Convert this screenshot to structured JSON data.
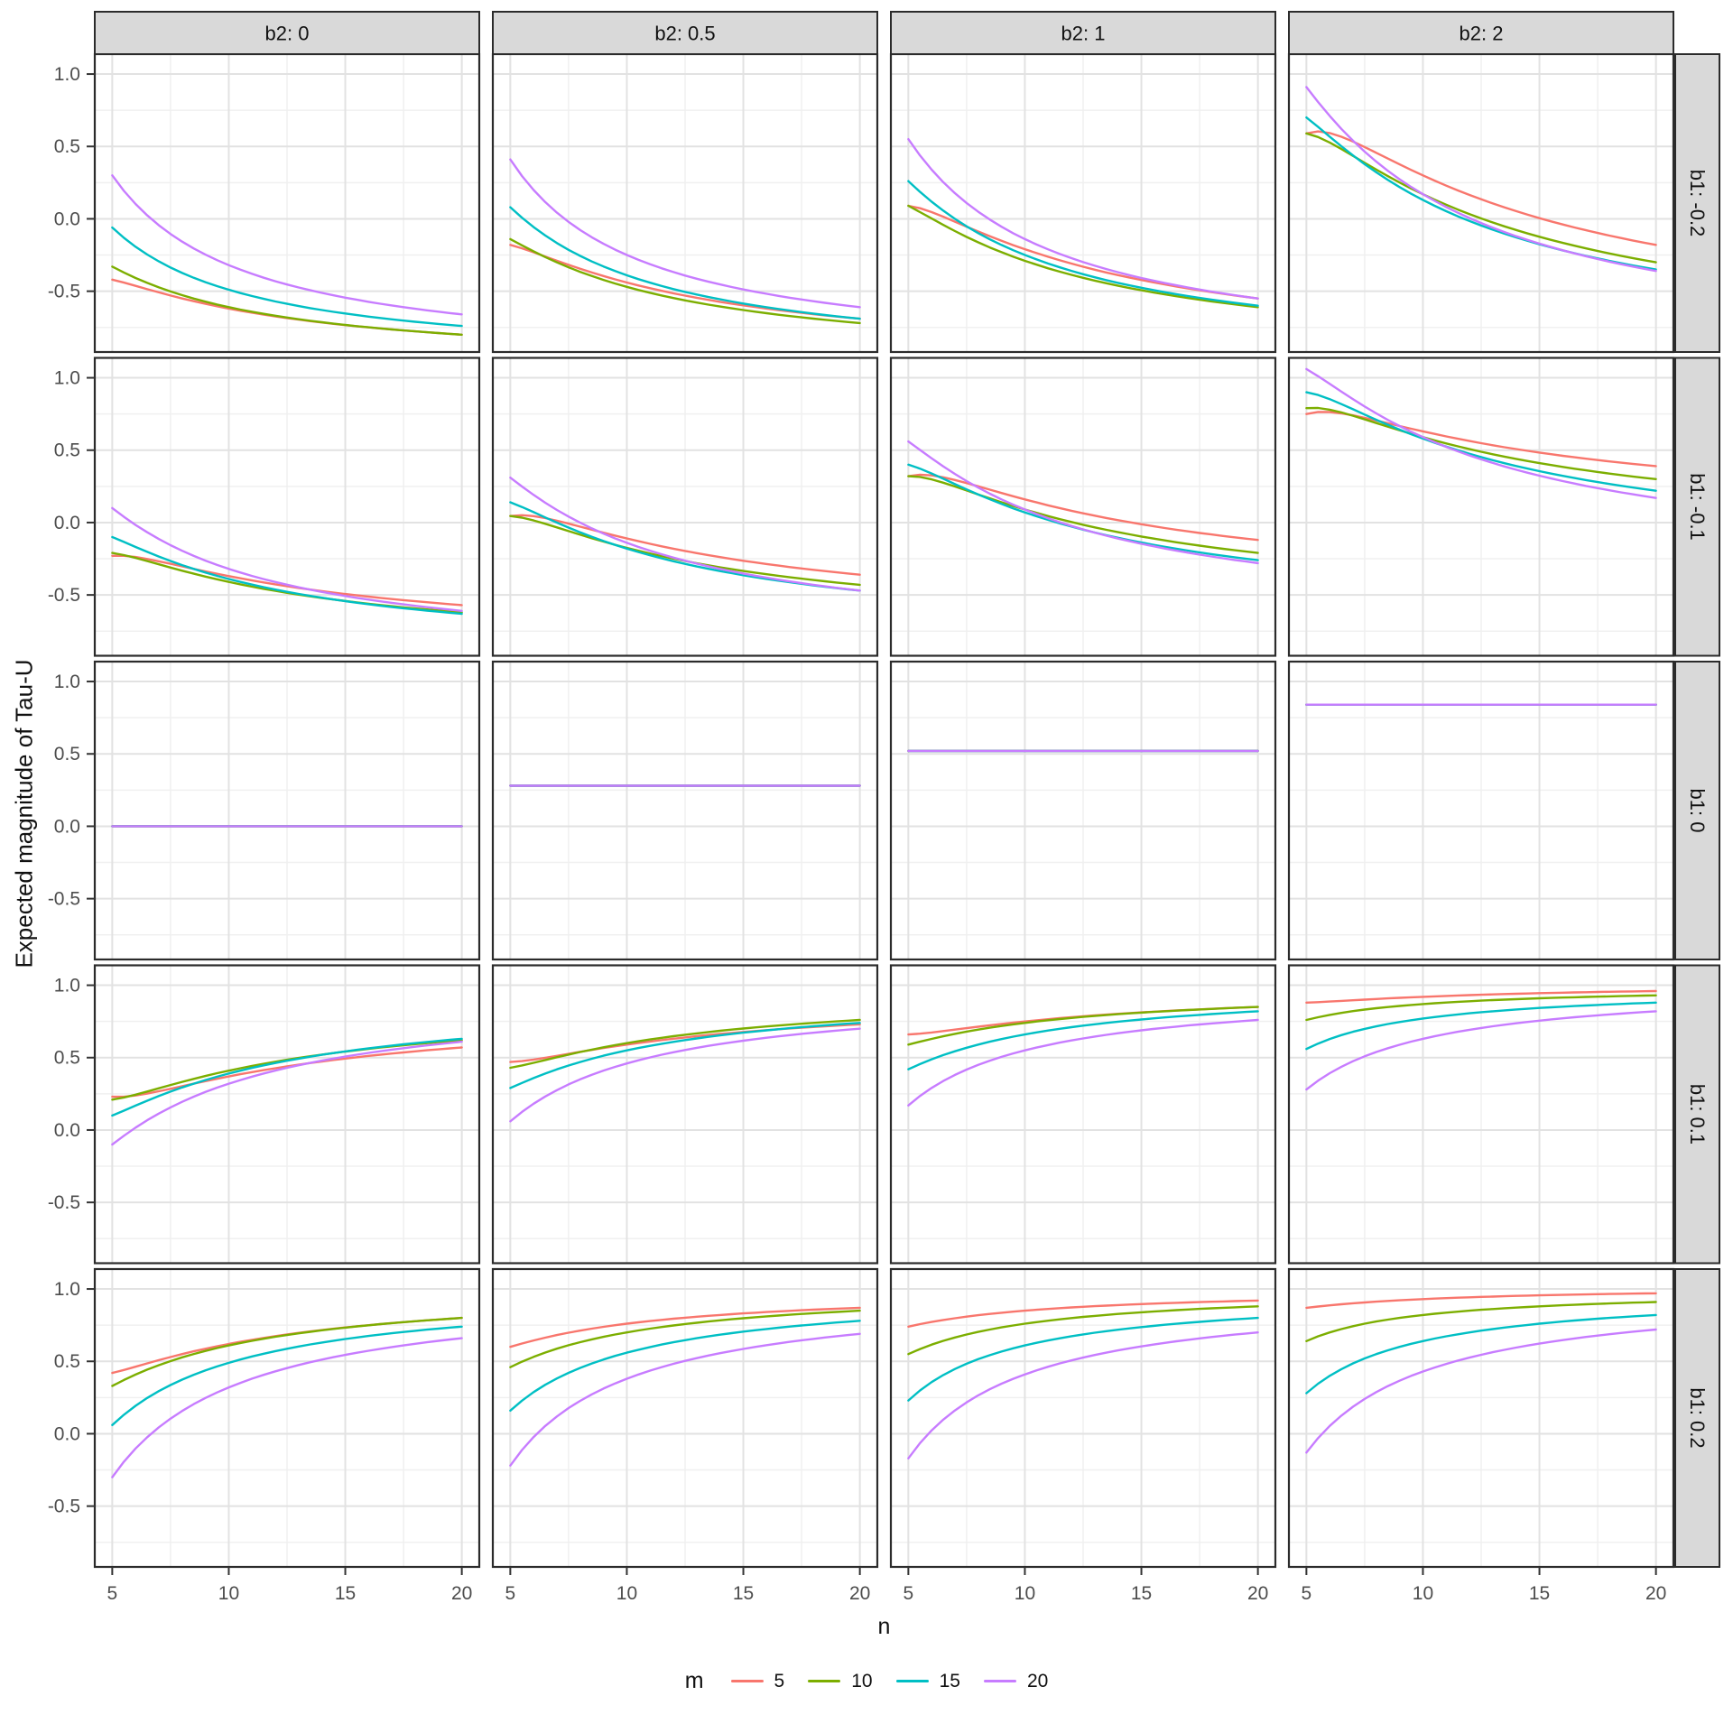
{
  "chart_data": {
    "type": "line",
    "xlabel": "n",
    "ylabel": "Expected magnitude of Tau-U",
    "x_ticks": [
      5,
      10,
      15,
      20
    ],
    "y_ticks": [
      1.0,
      0.5,
      0.0,
      -0.5
    ],
    "y_tick_labels": [
      "1.0",
      "0.5",
      "0.0",
      "-0.5"
    ],
    "x_minor_ticks": [
      7.5,
      12.5,
      17.5
    ],
    "y_minor_ticks": [
      0.75,
      0.25,
      -0.25,
      -0.75
    ],
    "x_domain": [
      4.25,
      20.75
    ],
    "y_domain": [
      -0.92,
      1.1375
    ],
    "grid": "on",
    "legend": {
      "title": "m",
      "position": "bottom",
      "entries": [
        {
          "label": "5",
          "color": "#F8766D"
        },
        {
          "label": "10",
          "color": "#7CAE00"
        },
        {
          "label": "15",
          "color": "#00BFC4"
        },
        {
          "label": "20",
          "color": "#C77CFF"
        }
      ]
    },
    "facet_col_labels": [
      "b2: 0",
      "b2: 0.5",
      "b2: 1",
      "b2: 2"
    ],
    "facet_row_labels": [
      "b1: -0.2",
      "b1: -0.1",
      "b1: 0",
      "b1: 0.1",
      "b1: 0.2"
    ],
    "series_anchor_n": [
      5,
      10,
      20
    ],
    "panels": [
      {
        "row": "b1: -0.2",
        "col": "b2: 0",
        "series": {
          "5": [
            -0.42,
            -0.62,
            -0.8
          ],
          "10": [
            -0.33,
            -0.61,
            -0.8
          ],
          "15": [
            -0.06,
            -0.49,
            -0.74
          ],
          "20": [
            0.3,
            -0.32,
            -0.66
          ]
        }
      },
      {
        "row": "b1: -0.2",
        "col": "b2: 0.5",
        "series": {
          "5": [
            -0.18,
            -0.44,
            -0.69
          ],
          "10": [
            -0.14,
            -0.47,
            -0.72
          ],
          "15": [
            0.08,
            -0.39,
            -0.69
          ],
          "20": [
            0.41,
            -0.25,
            -0.61
          ]
        }
      },
      {
        "row": "b1: -0.2",
        "col": "b2: 1",
        "series": {
          "5": [
            0.09,
            -0.21,
            -0.55
          ],
          "10": [
            0.09,
            -0.29,
            -0.61
          ],
          "15": [
            0.26,
            -0.25,
            -0.6
          ],
          "20": [
            0.55,
            -0.14,
            -0.55
          ]
        }
      },
      {
        "row": "b1: -0.2",
        "col": "b2: 2",
        "series": {
          "5": [
            0.59,
            0.3,
            -0.18
          ],
          "10": [
            0.59,
            0.17,
            -0.3
          ],
          "15": [
            0.7,
            0.13,
            -0.35
          ],
          "20": [
            0.91,
            0.17,
            -0.36
          ]
        }
      },
      {
        "row": "b1: -0.1",
        "col": "b2: 0",
        "series": {
          "5": [
            -0.23,
            -0.37,
            -0.57
          ],
          "10": [
            -0.21,
            -0.41,
            -0.62
          ],
          "15": [
            -0.1,
            -0.39,
            -0.63
          ],
          "20": [
            0.1,
            -0.32,
            -0.61
          ]
        }
      },
      {
        "row": "b1: -0.1",
        "col": "b2: 0.5",
        "series": {
          "5": [
            0.045,
            -0.11,
            -0.36
          ],
          "10": [
            0.045,
            -0.175,
            -0.43
          ],
          "15": [
            0.14,
            -0.18,
            -0.47
          ],
          "20": [
            0.31,
            -0.14,
            -0.47
          ]
        }
      },
      {
        "row": "b1: -0.1",
        "col": "b2: 1",
        "series": {
          "5": [
            0.32,
            0.16,
            -0.12
          ],
          "10": [
            0.32,
            0.09,
            -0.21
          ],
          "15": [
            0.4,
            0.07,
            -0.26
          ],
          "20": [
            0.56,
            0.09,
            -0.28
          ]
        }
      },
      {
        "row": "b1: -0.1",
        "col": "b2: 2",
        "series": {
          "5": [
            0.75,
            0.63,
            0.39
          ],
          "10": [
            0.79,
            0.59,
            0.3
          ],
          "15": [
            0.9,
            0.58,
            0.22
          ],
          "20": [
            1.06,
            0.59,
            0.17
          ]
        }
      },
      {
        "row": "b1: 0",
        "col": "b2: 0",
        "series": {
          "5": [
            0,
            0,
            0
          ],
          "10": [
            0,
            0,
            0
          ],
          "15": [
            0,
            0,
            0
          ],
          "20": [
            0,
            0,
            0
          ]
        }
      },
      {
        "row": "b1: 0",
        "col": "b2: 0.5",
        "series": {
          "5": [
            0.28,
            0.28,
            0.28
          ],
          "10": [
            0.28,
            0.28,
            0.28
          ],
          "15": [
            0.28,
            0.28,
            0.28
          ],
          "20": [
            0.28,
            0.28,
            0.28
          ]
        }
      },
      {
        "row": "b1: 0",
        "col": "b2: 1",
        "series": {
          "5": [
            0.52,
            0.52,
            0.52
          ],
          "10": [
            0.52,
            0.52,
            0.52
          ],
          "15": [
            0.52,
            0.52,
            0.52
          ],
          "20": [
            0.52,
            0.52,
            0.52
          ]
        }
      },
      {
        "row": "b1: 0",
        "col": "b2: 2",
        "series": {
          "5": [
            0.84,
            0.84,
            0.84
          ],
          "10": [
            0.84,
            0.84,
            0.84
          ],
          "15": [
            0.84,
            0.84,
            0.84
          ],
          "20": [
            0.84,
            0.84,
            0.84
          ]
        }
      },
      {
        "row": "b1: 0.1",
        "col": "b2: 0",
        "series": {
          "5": [
            0.23,
            0.37,
            0.57
          ],
          "10": [
            0.21,
            0.41,
            0.62
          ],
          "15": [
            0.1,
            0.39,
            0.63
          ],
          "20": [
            -0.1,
            0.32,
            0.61
          ]
        }
      },
      {
        "row": "b1: 0.1",
        "col": "b2: 0.5",
        "series": {
          "5": [
            0.47,
            0.59,
            0.73
          ],
          "10": [
            0.43,
            0.6,
            0.76
          ],
          "15": [
            0.29,
            0.55,
            0.74
          ],
          "20": [
            0.06,
            0.46,
            0.7
          ]
        }
      },
      {
        "row": "b1: 0.1",
        "col": "b2: 1",
        "series": {
          "5": [
            0.66,
            0.75,
            0.85
          ],
          "10": [
            0.59,
            0.74,
            0.85
          ],
          "15": [
            0.42,
            0.66,
            0.82
          ],
          "20": [
            0.17,
            0.55,
            0.76
          ]
        }
      },
      {
        "row": "b1: 0.1",
        "col": "b2: 2",
        "series": {
          "5": [
            0.88,
            0.92,
            0.96
          ],
          "10": [
            0.76,
            0.87,
            0.93
          ],
          "15": [
            0.56,
            0.77,
            0.88
          ],
          "20": [
            0.28,
            0.63,
            0.82
          ]
        }
      },
      {
        "row": "b1: 0.2",
        "col": "b2: 0",
        "series": {
          "5": [
            0.42,
            0.62,
            0.8
          ],
          "10": [
            0.33,
            0.61,
            0.8
          ],
          "15": [
            0.06,
            0.49,
            0.74
          ],
          "20": [
            -0.3,
            0.32,
            0.66
          ]
        }
      },
      {
        "row": "b1: 0.2",
        "col": "b2: 0.5",
        "series": {
          "5": [
            0.6,
            0.76,
            0.87
          ],
          "10": [
            0.46,
            0.7,
            0.85
          ],
          "15": [
            0.16,
            0.56,
            0.78
          ],
          "20": [
            -0.22,
            0.38,
            0.69
          ]
        }
      },
      {
        "row": "b1: 0.2",
        "col": "b2: 1",
        "series": {
          "5": [
            0.74,
            0.85,
            0.92
          ],
          "10": [
            0.55,
            0.76,
            0.88
          ],
          "15": [
            0.23,
            0.61,
            0.8
          ],
          "20": [
            -0.17,
            0.41,
            0.7
          ]
        }
      },
      {
        "row": "b1: 0.2",
        "col": "b2: 2",
        "series": {
          "5": [
            0.87,
            0.93,
            0.97
          ],
          "10": [
            0.64,
            0.82,
            0.91
          ],
          "15": [
            0.28,
            0.64,
            0.82
          ],
          "20": [
            -0.13,
            0.43,
            0.72
          ]
        }
      }
    ],
    "style": {
      "strip_bg": "#d9d9d9",
      "panel_border": "#2b2b2b",
      "grid_major": "#e2e2e2",
      "grid_minor": "#f0f0f0",
      "tick_label_color": "#4d4d4d",
      "strip_text_color": "#111111"
    }
  }
}
